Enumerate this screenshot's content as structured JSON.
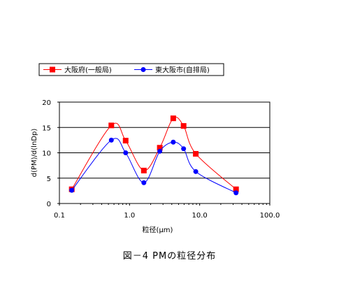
{
  "chart_data": {
    "type": "line",
    "title": "",
    "xlabel": "粒径(μm)",
    "ylabel": "d(PM)/d(lnDp)",
    "x_scale": "log",
    "xlim": [
      0.1,
      100.0
    ],
    "ylim": [
      0,
      20
    ],
    "x_ticks": [
      "0.1",
      "1.0",
      "10.0",
      "100.0"
    ],
    "y_ticks": [
      "0",
      "5",
      "10",
      "15",
      "20"
    ],
    "grid": "horizontal",
    "legend": "top-left",
    "series": [
      {
        "name": "大阪府(一般局)",
        "color": "#ff0000",
        "marker": "square",
        "points": [
          {
            "x": 0.15,
            "y": 2.8
          },
          {
            "x": 0.55,
            "y": 15.4
          },
          {
            "x": 0.88,
            "y": 12.4
          },
          {
            "x": 1.6,
            "y": 6.5
          },
          {
            "x": 2.7,
            "y": 11.0
          },
          {
            "x": 4.2,
            "y": 16.8
          },
          {
            "x": 5.9,
            "y": 15.3
          },
          {
            "x": 8.8,
            "y": 9.8
          },
          {
            "x": 33.0,
            "y": 2.8
          }
        ]
      },
      {
        "name": "東大阪市(自排局)",
        "color": "#0000ff",
        "marker": "circle",
        "points": [
          {
            "x": 0.15,
            "y": 2.6
          },
          {
            "x": 0.55,
            "y": 12.5
          },
          {
            "x": 0.88,
            "y": 10.0
          },
          {
            "x": 1.6,
            "y": 4.1
          },
          {
            "x": 2.7,
            "y": 10.3
          },
          {
            "x": 4.2,
            "y": 12.1
          },
          {
            "x": 5.9,
            "y": 10.8
          },
          {
            "x": 8.8,
            "y": 6.3
          },
          {
            "x": 33.0,
            "y": 2.1
          }
        ]
      }
    ]
  },
  "caption": "図－4 PMの粒径分布"
}
